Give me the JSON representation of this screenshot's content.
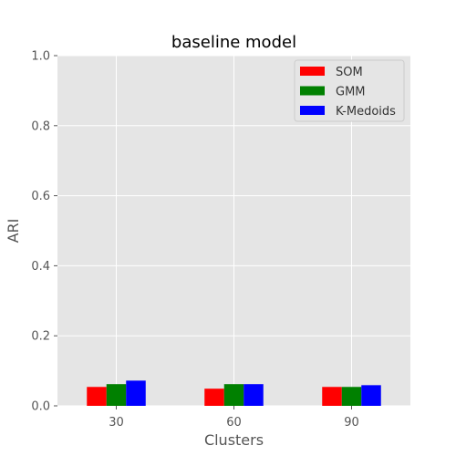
{
  "chart_data": {
    "type": "bar",
    "title": "baseline model",
    "xlabel": "Clusters",
    "ylabel": "ARI",
    "categories": [
      "30",
      "60",
      "90"
    ],
    "series": [
      {
        "name": "SOM",
        "color": "#ff0000",
        "values": [
          0.054,
          0.049,
          0.054
        ]
      },
      {
        "name": "GMM",
        "color": "#008000",
        "values": [
          0.062,
          0.062,
          0.054
        ]
      },
      {
        "name": "K-Medoids",
        "color": "#0000ff",
        "values": [
          0.072,
          0.062,
          0.059
        ]
      }
    ],
    "ylim": [
      0,
      1.0
    ],
    "yticks": [
      "0.0",
      "0.2",
      "0.4",
      "0.6",
      "0.8",
      "1.0"
    ],
    "grid": true,
    "legend_position": "top-right",
    "style": {
      "background": "#e5e5e5",
      "grid_color": "#ffffff"
    }
  }
}
